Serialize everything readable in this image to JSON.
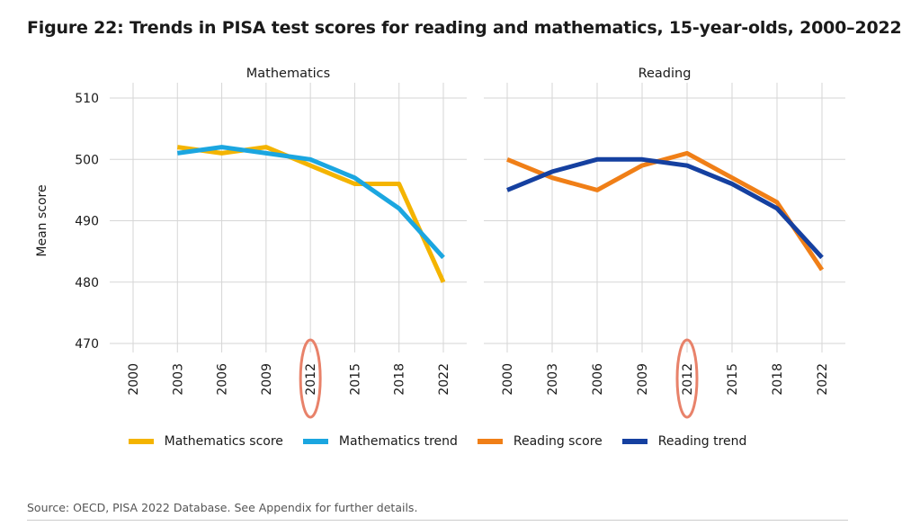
{
  "title": "Figure 22: Trends in PISA test scores for reading and mathematics, 15-year-olds, 2000–2022",
  "source": "Source: OECD, PISA 2022 Database. See Appendix for further details.",
  "colors": {
    "mathematics_score": "#F4B400",
    "mathematics_trend": "#1BA6E0",
    "reading_score": "#F07F17",
    "reading_trend": "#1540A0",
    "highlight": "#E8826A",
    "grid": "#d6d6d6"
  },
  "chart_data": [
    {
      "type": "line",
      "panel_title": "Mathematics",
      "ylabel": "Mean score",
      "categories": [
        "2000",
        "2003",
        "2006",
        "2009",
        "2012",
        "2015",
        "2018",
        "2022"
      ],
      "ylim": [
        470,
        510
      ],
      "yticks": [
        470,
        480,
        490,
        500,
        510
      ],
      "grid": true,
      "highlight_category": "2012",
      "series": [
        {
          "name": "Mathematics score",
          "color_key": "mathematics_score",
          "values": [
            null,
            502,
            501,
            502,
            499,
            496,
            496,
            480
          ]
        },
        {
          "name": "Mathematics trend",
          "color_key": "mathematics_trend",
          "values": [
            null,
            501,
            502,
            501,
            500,
            497,
            492,
            484
          ]
        }
      ]
    },
    {
      "type": "line",
      "panel_title": "Reading",
      "categories": [
        "2000",
        "2003",
        "2006",
        "2009",
        "2012",
        "2015",
        "2018",
        "2022"
      ],
      "ylim": [
        470,
        510
      ],
      "grid": true,
      "highlight_category": "2012",
      "series": [
        {
          "name": "Reading score",
          "color_key": "reading_score",
          "values": [
            500,
            497,
            495,
            499,
            501,
            497,
            493,
            482
          ]
        },
        {
          "name": "Reading trend",
          "color_key": "reading_trend",
          "values": [
            495,
            498,
            500,
            500,
            499,
            496,
            492,
            484
          ]
        }
      ]
    }
  ],
  "legend": {
    "placement": "bottom",
    "items": [
      {
        "label": "Mathematics score",
        "color_key": "mathematics_score"
      },
      {
        "label": "Mathematics trend",
        "color_key": "mathematics_trend"
      },
      {
        "label": "Reading score",
        "color_key": "reading_score"
      },
      {
        "label": "Reading trend",
        "color_key": "reading_trend"
      }
    ]
  }
}
